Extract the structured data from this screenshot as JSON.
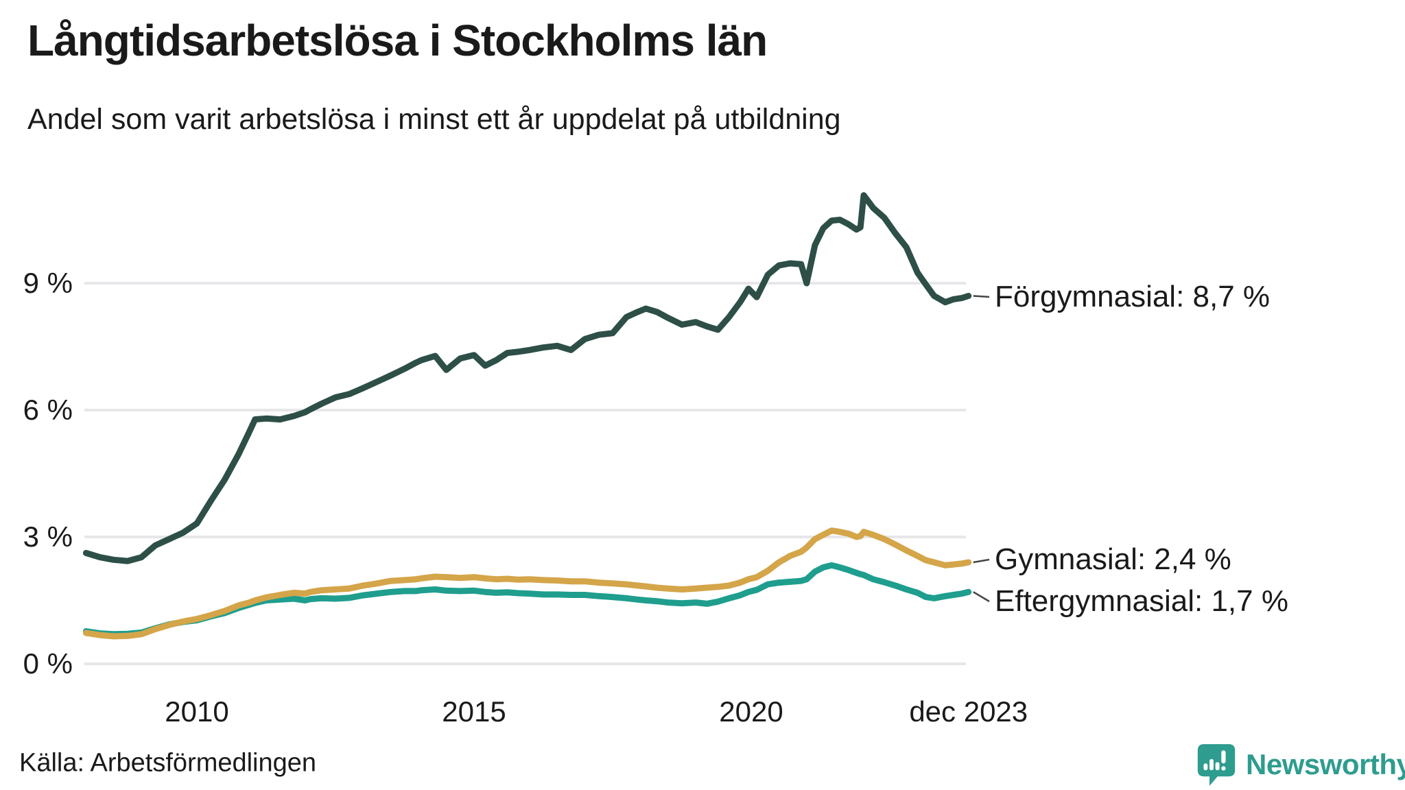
{
  "header": {
    "title": "Långtidsarbetslösa i Stockholms län",
    "subtitle": "Andel som varit arbetslösa i minst ett år uppdelat på utbildning"
  },
  "chart_data": {
    "type": "line",
    "title": "Långtidsarbetslösa i Stockholms län",
    "subtitle": "Andel som varit arbetslösa i minst ett år uppdelat på utbildning",
    "y_unit": "%",
    "x_unit": "decimal_year",
    "xlim": [
      2008.0,
      2023.95
    ],
    "ylim": [
      0,
      12.0
    ],
    "grid": "horizontal",
    "legend_position": "end-labels-right",
    "y_ticks": [
      {
        "value": 9,
        "label": "9 %"
      },
      {
        "value": 6,
        "label": "6 %"
      },
      {
        "value": 3,
        "label": "3 %"
      },
      {
        "value": 0,
        "label": "0 %"
      }
    ],
    "x_ticks": [
      {
        "value": 2010,
        "label": "2010"
      },
      {
        "value": 2015,
        "label": "2015"
      },
      {
        "value": 2020,
        "label": "2020"
      },
      {
        "value": 2023.92,
        "label": "dec 2023"
      }
    ],
    "x": [
      2008.0,
      2008.25,
      2008.5,
      2008.75,
      2009.0,
      2009.25,
      2009.5,
      2009.75,
      2010.0,
      2010.25,
      2010.5,
      2010.75,
      2010.95,
      2011.05,
      2011.25,
      2011.5,
      2011.75,
      2011.95,
      2012.05,
      2012.25,
      2012.5,
      2012.75,
      2013.0,
      2013.25,
      2013.5,
      2013.75,
      2013.95,
      2014.05,
      2014.3,
      2014.5,
      2014.75,
      2015.0,
      2015.2,
      2015.4,
      2015.6,
      2015.8,
      2016.0,
      2016.25,
      2016.5,
      2016.75,
      2017.0,
      2017.25,
      2017.5,
      2017.75,
      2017.95,
      2018.1,
      2018.3,
      2018.5,
      2018.75,
      2019.0,
      2019.2,
      2019.4,
      2019.6,
      2019.8,
      2019.95,
      2020.1,
      2020.3,
      2020.5,
      2020.7,
      2020.9,
      2021.0,
      2021.15,
      2021.3,
      2021.45,
      2021.6,
      2021.75,
      2021.9,
      2021.97,
      2022.03,
      2022.2,
      2022.4,
      2022.6,
      2022.8,
      2023.0,
      2023.15,
      2023.3,
      2023.5,
      2023.65,
      2023.8,
      2023.92
    ],
    "series": [
      {
        "id": "forgymnasial",
        "name": "Förgymnasial",
        "end_label": "Förgymnasial: 8,7 %",
        "latest_value": "8,7 %",
        "color": "#2d4f47",
        "values": [
          2.62,
          2.52,
          2.46,
          2.43,
          2.52,
          2.8,
          2.95,
          3.1,
          3.32,
          3.85,
          4.35,
          4.95,
          5.5,
          5.78,
          5.8,
          5.78,
          5.86,
          5.95,
          6.02,
          6.15,
          6.3,
          6.38,
          6.52,
          6.67,
          6.82,
          6.98,
          7.12,
          7.18,
          7.28,
          6.95,
          7.22,
          7.3,
          7.05,
          7.18,
          7.35,
          7.38,
          7.42,
          7.48,
          7.52,
          7.42,
          7.68,
          7.78,
          7.82,
          8.2,
          8.32,
          8.4,
          8.32,
          8.18,
          8.02,
          8.08,
          7.98,
          7.9,
          8.2,
          8.55,
          8.87,
          8.67,
          9.2,
          9.42,
          9.47,
          9.45,
          9.0,
          9.9,
          10.3,
          10.48,
          10.5,
          10.4,
          10.27,
          10.32,
          11.08,
          10.78,
          10.55,
          10.18,
          9.85,
          9.25,
          8.97,
          8.7,
          8.55,
          8.62,
          8.65,
          8.7
        ]
      },
      {
        "id": "gymnasial",
        "name": "Gymnasial",
        "end_label": "Gymnasial: 2,4 %",
        "latest_value": "2,4 %",
        "color": "#d4a549",
        "values": [
          0.73,
          0.68,
          0.65,
          0.66,
          0.7,
          0.82,
          0.92,
          1.0,
          1.06,
          1.15,
          1.25,
          1.38,
          1.45,
          1.5,
          1.57,
          1.63,
          1.68,
          1.66,
          1.7,
          1.74,
          1.76,
          1.78,
          1.85,
          1.9,
          1.96,
          1.98,
          2.0,
          2.02,
          2.06,
          2.05,
          2.03,
          2.05,
          2.02,
          2.0,
          2.01,
          1.99,
          2.0,
          1.98,
          1.97,
          1.95,
          1.95,
          1.92,
          1.9,
          1.88,
          1.85,
          1.83,
          1.8,
          1.78,
          1.76,
          1.78,
          1.8,
          1.82,
          1.85,
          1.92,
          2.0,
          2.05,
          2.2,
          2.4,
          2.55,
          2.65,
          2.75,
          2.95,
          3.05,
          3.15,
          3.12,
          3.08,
          3.0,
          3.02,
          3.12,
          3.05,
          2.95,
          2.82,
          2.68,
          2.55,
          2.45,
          2.4,
          2.33,
          2.35,
          2.37,
          2.4
        ]
      },
      {
        "id": "eftergymnasial",
        "name": "Eftergymnasial",
        "end_label": "Eftergymnasial: 1,7 %",
        "latest_value": "1,7 %",
        "color": "#1f9e8e",
        "values": [
          0.77,
          0.72,
          0.7,
          0.71,
          0.74,
          0.84,
          0.93,
          0.99,
          1.03,
          1.12,
          1.2,
          1.32,
          1.4,
          1.44,
          1.5,
          1.52,
          1.54,
          1.5,
          1.53,
          1.55,
          1.54,
          1.56,
          1.62,
          1.66,
          1.7,
          1.72,
          1.72,
          1.74,
          1.76,
          1.73,
          1.72,
          1.73,
          1.7,
          1.68,
          1.69,
          1.67,
          1.66,
          1.64,
          1.64,
          1.63,
          1.63,
          1.6,
          1.58,
          1.55,
          1.52,
          1.5,
          1.48,
          1.45,
          1.43,
          1.45,
          1.42,
          1.47,
          1.55,
          1.62,
          1.7,
          1.75,
          1.88,
          1.92,
          1.94,
          1.96,
          2.0,
          2.18,
          2.28,
          2.33,
          2.28,
          2.22,
          2.15,
          2.12,
          2.1,
          2.0,
          1.93,
          1.85,
          1.76,
          1.68,
          1.58,
          1.55,
          1.6,
          1.63,
          1.66,
          1.7
        ]
      }
    ]
  },
  "footer": {
    "source": "Källa: Arbetsförmedlingen",
    "brand": "Newsworthy"
  },
  "colors": {
    "accent_dark": "#2d4f47",
    "accent_yellow": "#d4a549",
    "accent_teal": "#1f9e8e",
    "grid": "#e7e7ea",
    "text": "#1a1a1a",
    "connector": "#444444",
    "brand_teal": "#2e9c8e"
  }
}
